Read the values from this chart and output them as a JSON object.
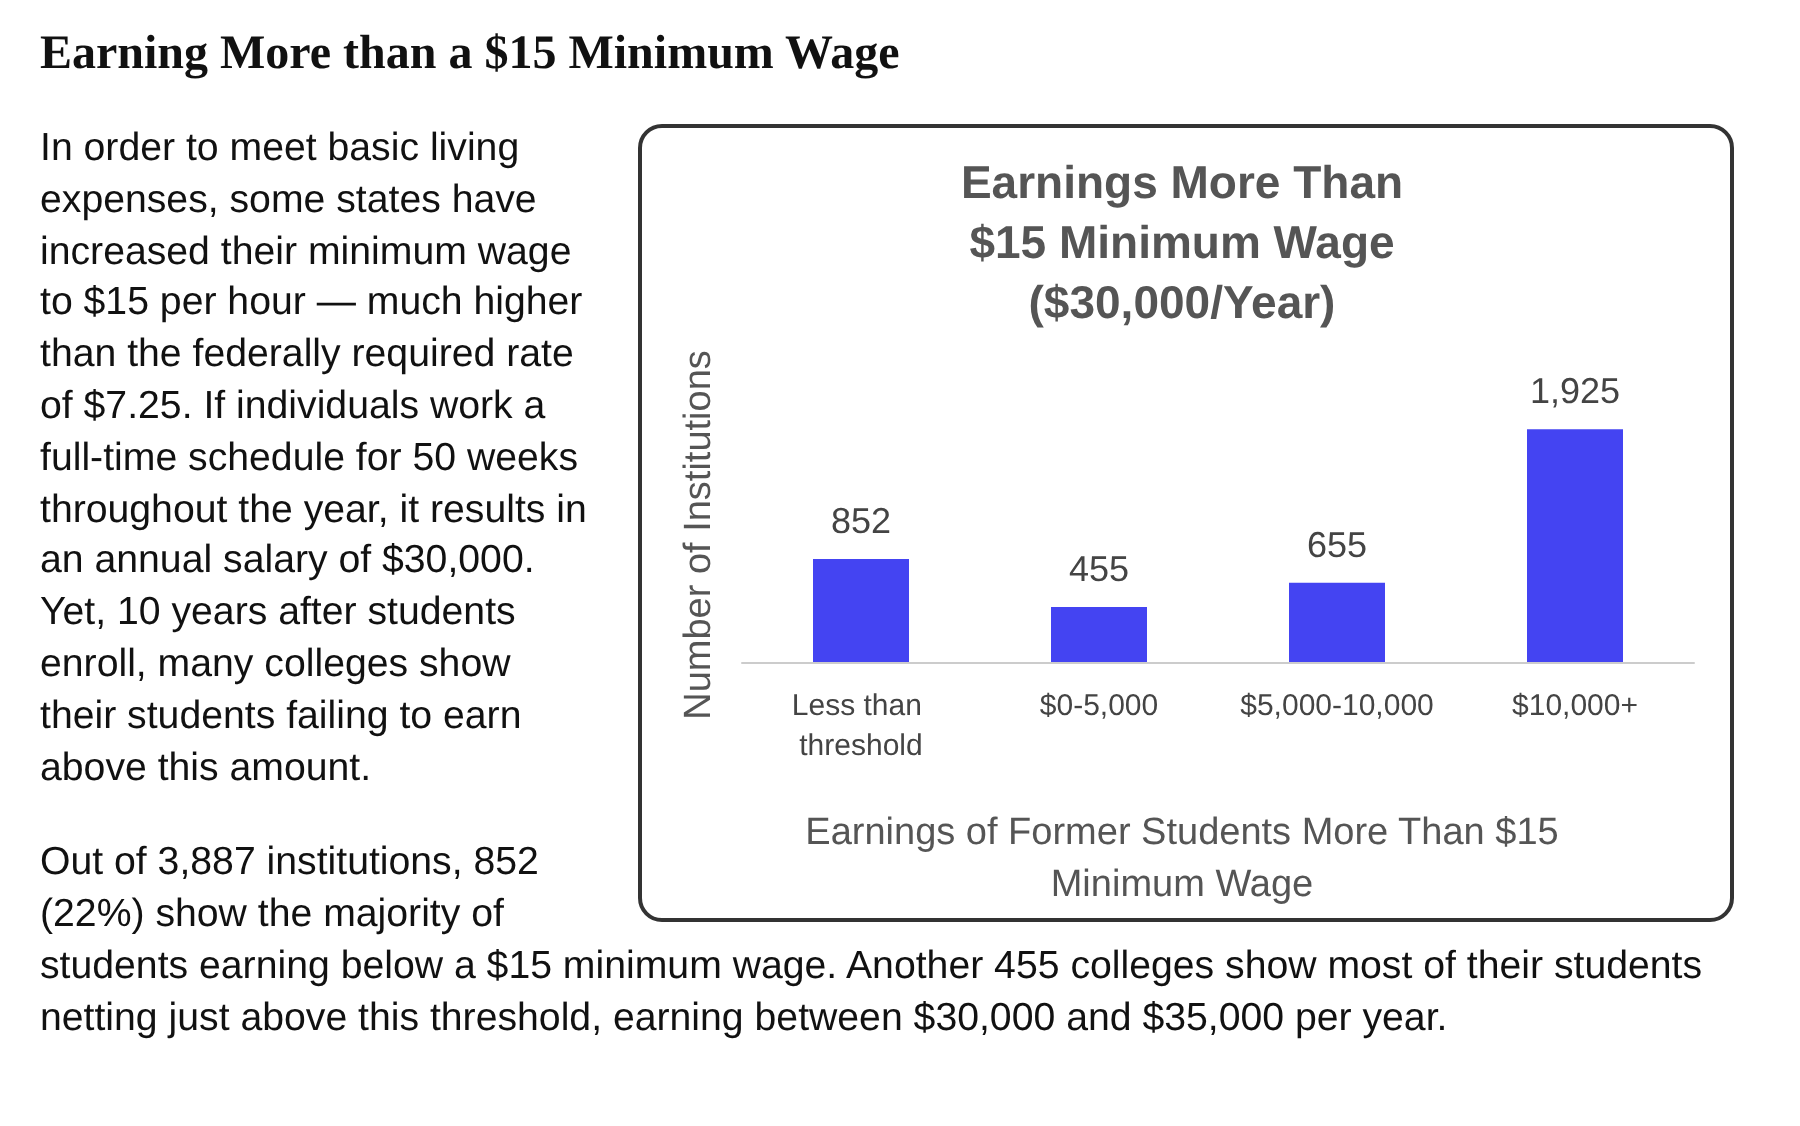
{
  "chart_data": {
    "type": "bar",
    "title": "Earnings More Than $15 Minimum Wage ($30,000/Year)",
    "xlabel": "Earnings of Former Students More Than $15 Minimum Wage",
    "ylabel": "Number of Institutions",
    "categories": [
      "Less than threshold",
      "$0-5,000",
      "$5,000-10,000",
      "$10,000+"
    ],
    "values": [
      852,
      455,
      655,
      1925
    ],
    "color": "#4444f2",
    "value_labels": [
      "852",
      "455",
      "655",
      "1,925"
    ],
    "grid": false,
    "annotations": [
      "Earning More than a $15 Minimum Wage",
      "In order to meet basic living expenses, some states have increased their minimum wage to $15 per hour — much higher than the federally required rate of $7.25. If individuals work a full-time schedule for 50 weeks throughout the year, it results in an annual salary of $30,000. Yet, 10 years after students enroll, many colleges show their students failing to earn above this amount.",
      "Out of 3,887 institutions, 852 (22%) show the majority of students earning below a $15 minimum wage. Another 455 colleges show most of their students netting just above this threshold, earning between $30,000 and $35,000 per year."
    ]
  }
}
